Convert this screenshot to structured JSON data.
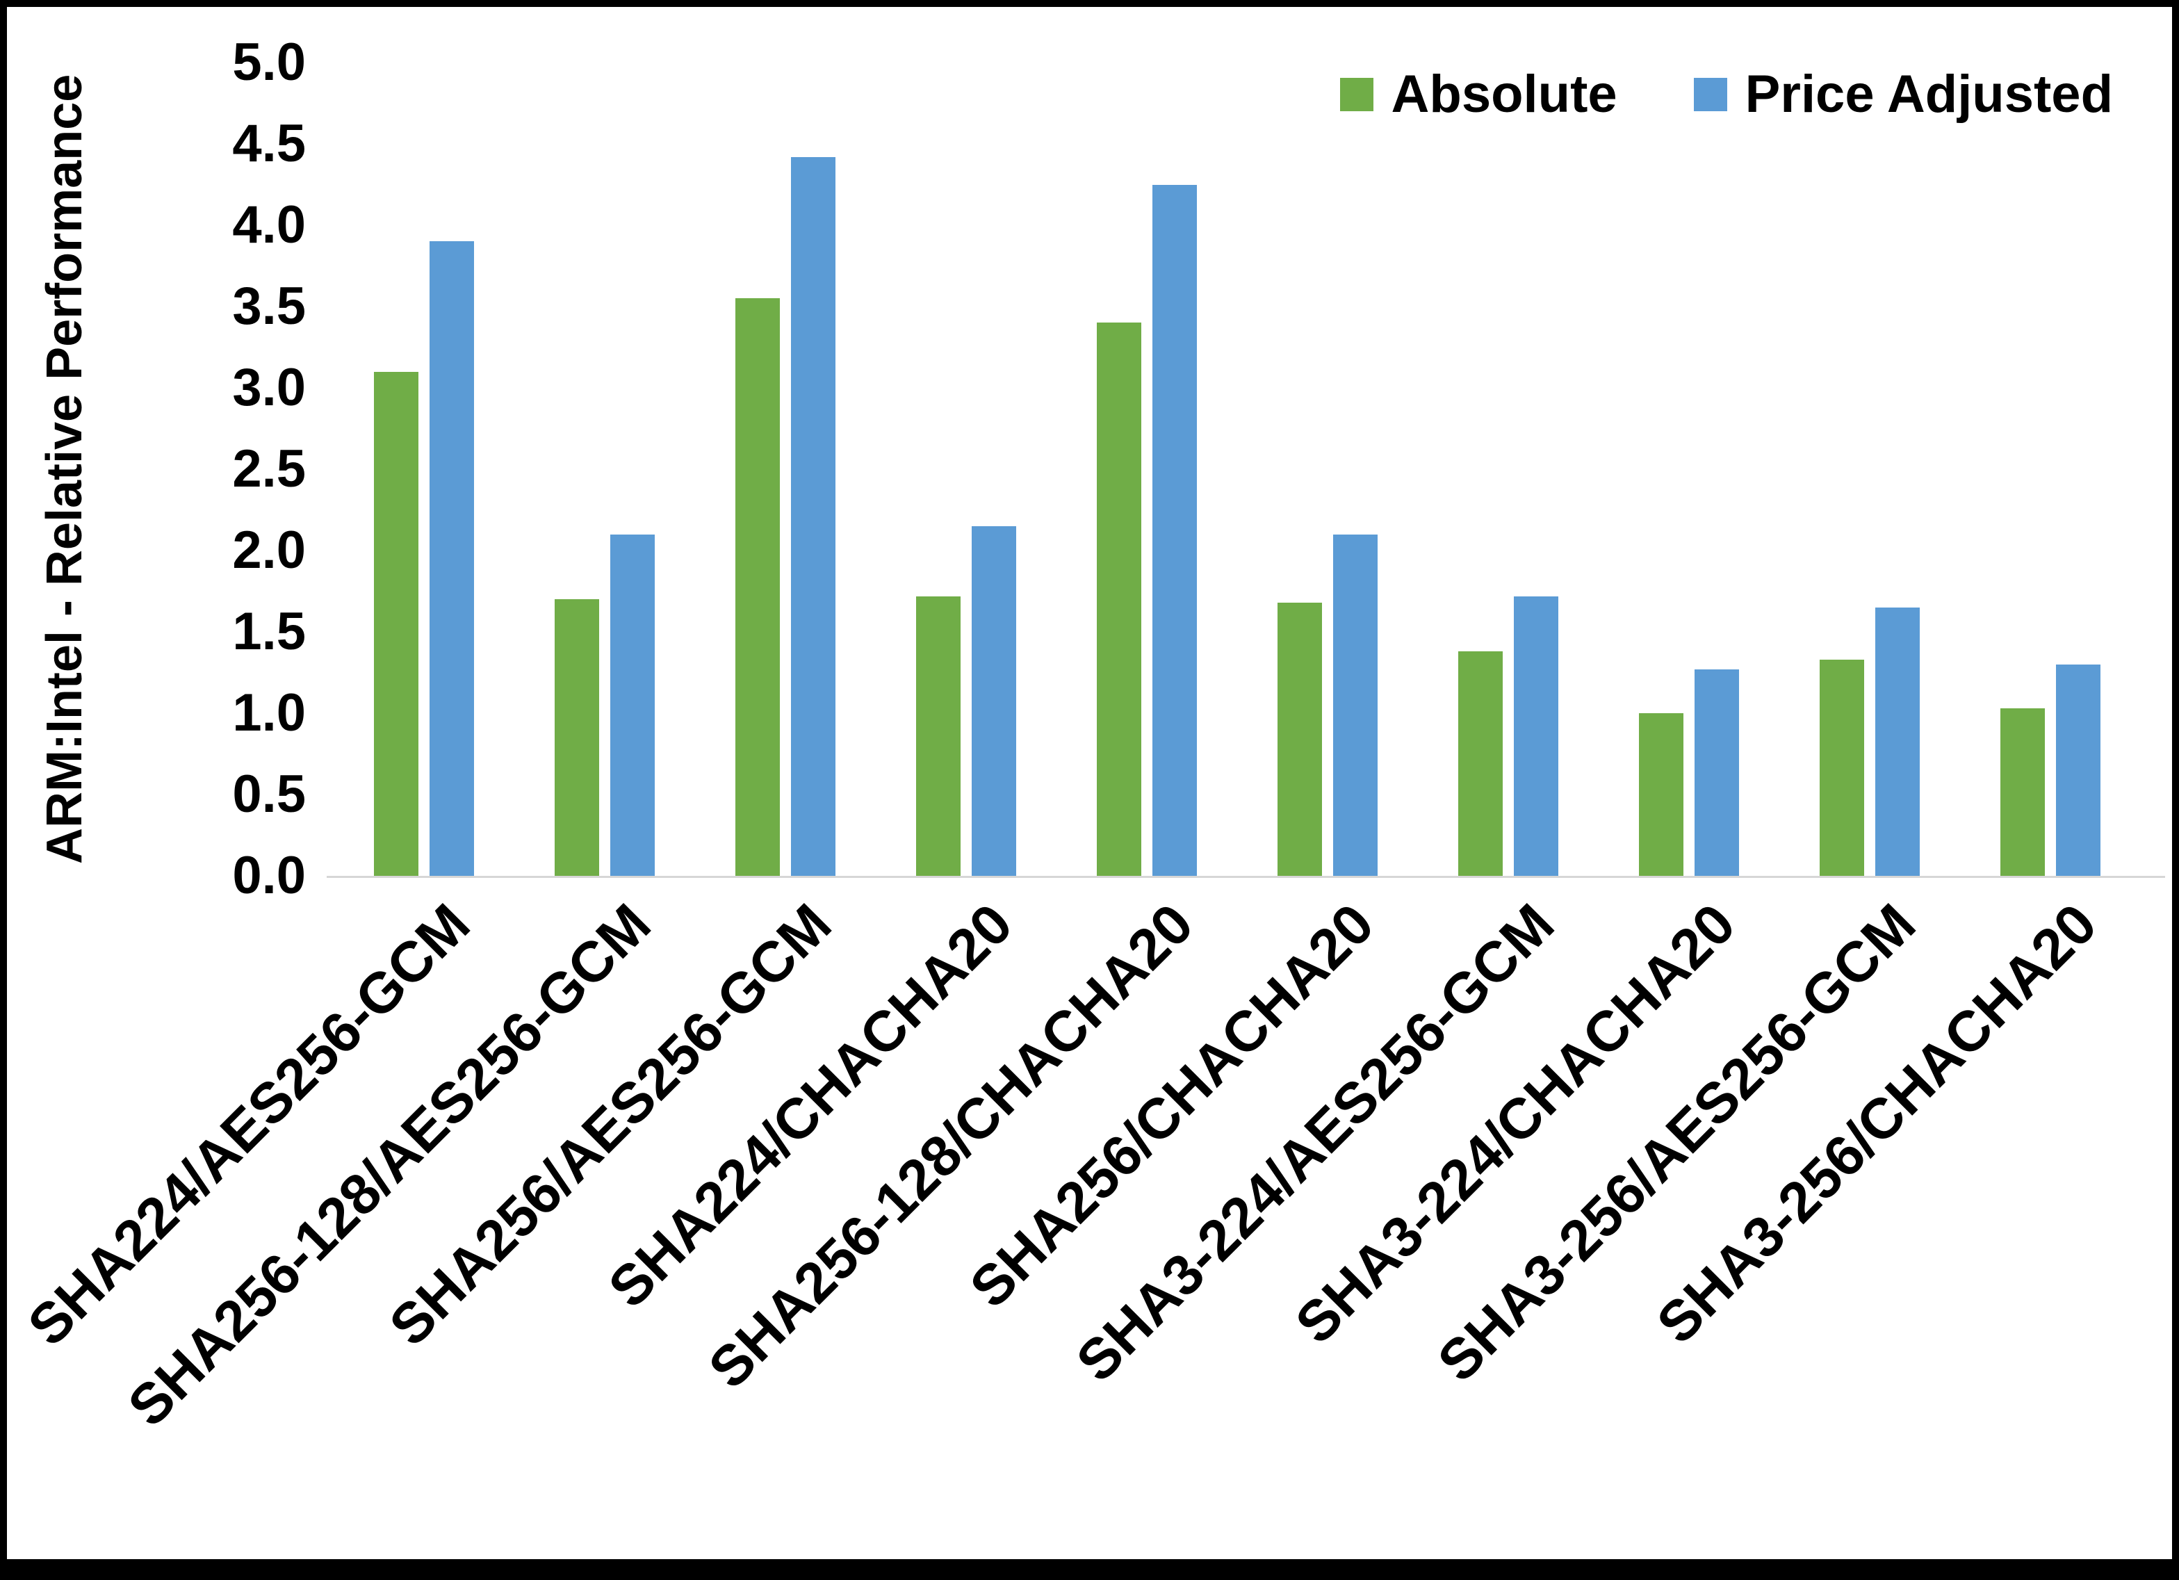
{
  "chart_data": {
    "type": "bar",
    "title": "",
    "xlabel": "",
    "ylabel": "ARM:Intel - Relative Performance",
    "ylim": [
      0,
      5
    ],
    "ytick_step": 0.5,
    "yticks": [
      "0.0",
      "0.5",
      "1.0",
      "1.5",
      "2.0",
      "2.5",
      "3.0",
      "3.5",
      "4.0",
      "4.5",
      "5.0"
    ],
    "grid": false,
    "legend_position": "top-right",
    "axis_line_color": "#d6d6d6",
    "categories": [
      "SHA224/AES256-GCM",
      "SHA256-128/AES256-GCM",
      "SHA256/AES256-GCM",
      "SHA224/CHACHA20",
      "SHA256-128/CHACHA20",
      "SHA256/CHACHA20",
      "SHA3-224/AES256-GCM",
      "SHA3-224/CHACHA20",
      "SHA3-256/AES256-GCM",
      "SHA3-256/CHACHA20"
    ],
    "series": [
      {
        "name": "Absolute",
        "color": "#70AD47",
        "values": [
          3.1,
          1.7,
          3.55,
          1.72,
          3.4,
          1.68,
          1.38,
          1.0,
          1.33,
          1.03
        ]
      },
      {
        "name": "Price Adjusted",
        "color": "#5B9BD5",
        "values": [
          3.9,
          2.1,
          4.42,
          2.15,
          4.25,
          2.1,
          1.72,
          1.27,
          1.65,
          1.3
        ]
      }
    ]
  }
}
